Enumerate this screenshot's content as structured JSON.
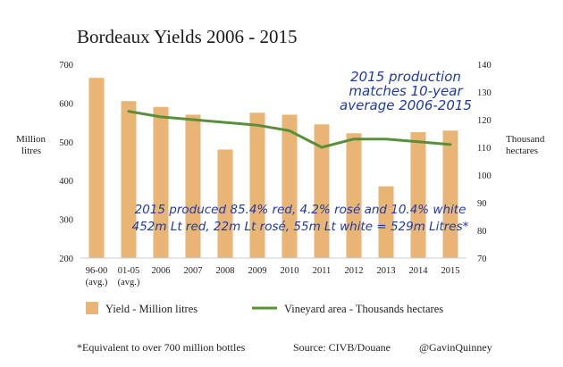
{
  "chart_data": {
    "type": "bar",
    "title": "Bordeaux Yields 2006 - 2015",
    "categories": [
      "96-00",
      "01-05",
      "2006",
      "2007",
      "2008",
      "2009",
      "2010",
      "2011",
      "2012",
      "2013",
      "2014",
      "2015"
    ],
    "category_sublabels": [
      "(avg.)",
      "(avg.)",
      "",
      "",
      "",
      "",
      "",
      "",
      "",
      "",
      "",
      ""
    ],
    "series": [
      {
        "name": "Yield - Million litres",
        "type": "bar",
        "axis": "left",
        "color": "#e8b574",
        "values": [
          665,
          605,
          590,
          570,
          480,
          575,
          570,
          545,
          522,
          385,
          525,
          529
        ]
      },
      {
        "name": "Vineyard area - Thousands hectares",
        "type": "line",
        "axis": "right",
        "color": "#5a8f3a",
        "values": [
          null,
          123,
          121,
          120,
          119,
          118,
          116,
          110,
          113,
          113,
          112,
          111
        ]
      }
    ],
    "y_left": {
      "label_line1": "Million",
      "label_line2": "litres",
      "ylim": [
        200,
        700
      ],
      "ticks": [
        200,
        300,
        400,
        500,
        600,
        700
      ]
    },
    "y_right": {
      "label_line1": "Thousand",
      "label_line2": "hectares",
      "ylim": [
        70,
        140
      ],
      "ticks": [
        70,
        80,
        90,
        100,
        110,
        120,
        130,
        140
      ]
    },
    "grid": false,
    "legend_position": "bottom",
    "annotations": {
      "top_line1": "2015 production",
      "top_line2": "matches 10-year",
      "top_line3": "average 2006-2015",
      "mid_line1": "2015 produced 85.4% red, 4.2% rosé and 10.4% white",
      "mid_line2": "452m Lt red, 22m Lt rosé, 55m Lt white = 529m Litres*"
    }
  },
  "footer": {
    "footnote": "*Equivalent to over 700 million bottles",
    "source": "Source: CIVB/Douane",
    "handle": "@GavinQuinney"
  },
  "colors": {
    "background": "#ffffff",
    "bar": "#e8b574",
    "line": "#5a8f3a",
    "annotation": "#1f3aa8"
  }
}
